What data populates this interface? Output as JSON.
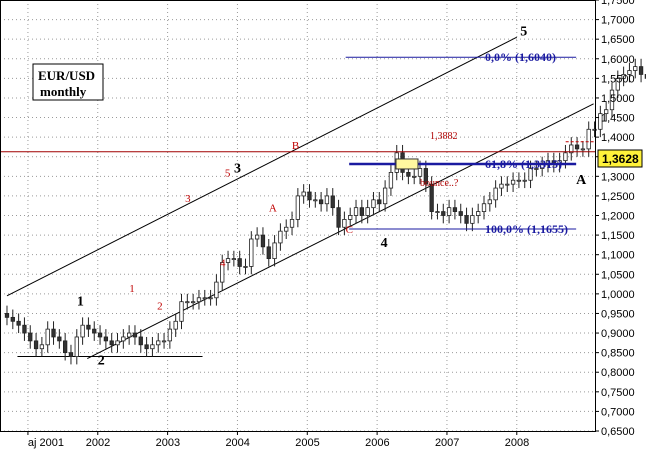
{
  "chart_data": {
    "type": "candlestick",
    "title": "EUR/USD",
    "subtitle": "monthly",
    "x_range": [
      2000.6,
      2009.12
    ],
    "ylim": [
      0.65,
      1.75
    ],
    "y_ticks": [
      "1,7500",
      "1,7000",
      "1,6500",
      "1,6000",
      "1,5500",
      "1,5000",
      "1,4500",
      "1,4000",
      "1,3500",
      "1,3000",
      "1,2500",
      "1,2000",
      "1,1500",
      "1,1000",
      "1,0500",
      "1,0000",
      "0,9500",
      "0,9000",
      "0,8500",
      "0,8000",
      "0,7500",
      "0,7000",
      "0,6500"
    ],
    "y_tick_values": [
      1.75,
      1.7,
      1.65,
      1.6,
      1.55,
      1.5,
      1.45,
      1.4,
      1.35,
      1.3,
      1.25,
      1.2,
      1.15,
      1.1,
      1.05,
      1.0,
      0.95,
      0.9,
      0.85,
      0.8,
      0.75,
      0.7,
      0.65
    ],
    "x_ticks": [
      {
        "label": "aj 2001",
        "x": 2001.0
      },
      {
        "label": "2002",
        "x": 2002.0
      },
      {
        "label": "2003",
        "x": 2003.0
      },
      {
        "label": "2004",
        "x": 2004.0
      },
      {
        "label": "2005",
        "x": 2005.0
      },
      {
        "label": "2006",
        "x": 2006.0
      },
      {
        "label": "2007",
        "x": 2007.0
      },
      {
        "label": "2008",
        "x": 2008.0
      }
    ],
    "close_series": [
      0.94,
      0.93,
      0.92,
      0.9,
      0.88,
      0.86,
      0.87,
      0.91,
      0.89,
      0.88,
      0.85,
      0.84,
      0.89,
      0.92,
      0.91,
      0.9,
      0.89,
      0.88,
      0.87,
      0.88,
      0.89,
      0.9,
      0.89,
      0.87,
      0.86,
      0.87,
      0.88,
      0.88,
      0.91,
      0.93,
      0.98,
      0.98,
      0.98,
      0.99,
      0.99,
      0.99,
      1.03,
      1.08,
      1.09,
      1.09,
      1.07,
      1.07,
      1.14,
      1.15,
      1.12,
      1.09,
      1.13,
      1.16,
      1.17,
      1.19,
      1.25,
      1.26,
      1.24,
      1.24,
      1.23,
      1.25,
      1.22,
      1.17,
      1.19,
      1.2,
      1.22,
      1.2,
      1.22,
      1.24,
      1.23,
      1.27,
      1.31,
      1.36,
      1.31,
      1.3,
      1.3,
      1.32,
      1.28,
      1.21,
      1.21,
      1.2,
      1.22,
      1.21,
      1.2,
      1.18,
      1.2,
      1.21,
      1.23,
      1.24,
      1.27,
      1.28,
      1.28,
      1.29,
      1.29,
      1.29,
      1.32,
      1.32,
      1.33,
      1.34,
      1.33,
      1.34,
      1.36,
      1.38,
      1.37,
      1.37,
      1.42,
      1.42,
      1.46,
      1.47,
      1.52,
      1.55,
      1.56,
      1.57,
      1.58,
      1.56,
      1.55,
      1.47,
      1.4,
      1.33,
      1.36
    ],
    "close_series_start": 2000.7,
    "close_series_step": 0.0833,
    "current_price": "1,3628",
    "current_price_value": 1.3628,
    "fib_levels": [
      {
        "label": "0,0% (1,6040)",
        "value": 1.604
      },
      {
        "label": "61,8% (1,3315)",
        "value": 1.3315
      },
      {
        "label": "100,0% (1,1655)",
        "value": 1.1655
      }
    ],
    "secondary_level": {
      "label": "1,3882",
      "value": 1.3882
    },
    "wave_labels_major": [
      {
        "text": "1",
        "x": 2001.7,
        "y": 0.97
      },
      {
        "text": "2",
        "x": 2002.0,
        "y": 0.82
      },
      {
        "text": "3",
        "x": 2003.95,
        "y": 1.31
      },
      {
        "text": "4",
        "x": 2006.05,
        "y": 1.12
      },
      {
        "text": "5",
        "x": 2008.05,
        "y": 1.66
      },
      {
        "text": "A",
        "x": 2008.85,
        "y": 1.28
      }
    ],
    "wave_labels_minor": [
      {
        "text": "1",
        "x": 2002.45,
        "y": 1.005
      },
      {
        "text": "2",
        "x": 2002.85,
        "y": 0.96
      },
      {
        "text": "3",
        "x": 2003.25,
        "y": 1.235
      },
      {
        "text": "4",
        "x": 2003.75,
        "y": 1.07
      },
      {
        "text": "5",
        "x": 2003.82,
        "y": 1.3
      },
      {
        "text": "A",
        "x": 2004.45,
        "y": 1.21
      },
      {
        "text": "B",
        "x": 2004.78,
        "y": 1.37
      },
      {
        "text": "C",
        "x": 2005.55,
        "y": 1.155
      }
    ],
    "annotation": "bounce..?",
    "grid": true,
    "legend": "top-left"
  }
}
